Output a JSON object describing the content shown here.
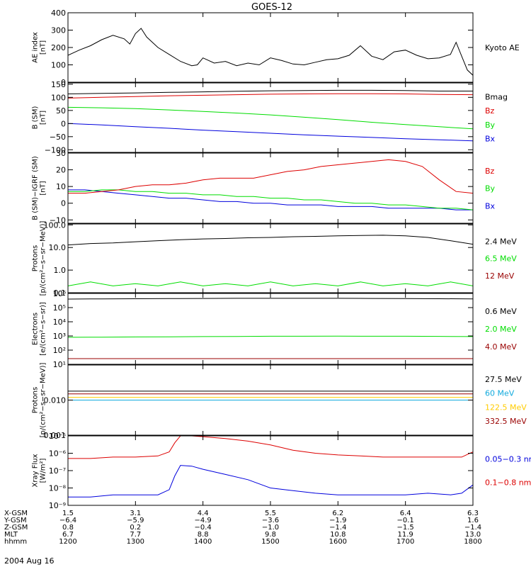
{
  "title": "GOES-12",
  "date_label": "2004 Aug 16",
  "colors": {
    "black": "#000000",
    "red": "#dd0000",
    "darkred": "#990000",
    "green": "#00dd00",
    "blue": "#0000dd",
    "yellow": "#ffcc00",
    "cyan": "#11aadd"
  },
  "chart_data": [
    {
      "type": "line",
      "panel": "ae",
      "ylabel": [
        "AE index",
        "[nT]"
      ],
      "yscale": "linear",
      "ylim": [
        0,
        400
      ],
      "ticks": [
        0,
        100,
        200,
        300,
        400
      ],
      "tick_labels": [
        "0",
        "100",
        "200",
        "300",
        "400"
      ],
      "x": [
        1200,
        1210,
        1220,
        1230,
        1240,
        1250,
        1255,
        1300,
        1305,
        1310,
        1320,
        1330,
        1340,
        1350,
        1355,
        1400,
        1410,
        1420,
        1430,
        1440,
        1450,
        1500,
        1510,
        1520,
        1530,
        1540,
        1550,
        1600,
        1610,
        1620,
        1630,
        1640,
        1650,
        1700,
        1710,
        1720,
        1730,
        1740,
        1745,
        1750,
        1755,
        1800
      ],
      "series": [
        {
          "name": "Kyoto AE",
          "color_key": "black",
          "values": [
            155,
            185,
            210,
            245,
            270,
            250,
            220,
            280,
            310,
            260,
            200,
            160,
            120,
            95,
            100,
            140,
            110,
            120,
            95,
            110,
            100,
            140,
            125,
            105,
            100,
            115,
            130,
            135,
            155,
            210,
            150,
            130,
            175,
            185,
            155,
            135,
            140,
            160,
            230,
            150,
            70,
            40
          ]
        }
      ]
    },
    {
      "type": "line",
      "panel": "b_sm",
      "ylabel": [
        "B (SM)",
        "[nT]"
      ],
      "yscale": "linear",
      "ylim": [
        -110,
        155
      ],
      "ticks": [
        -100,
        -50,
        0,
        50,
        100,
        150
      ],
      "tick_labels": [
        "−100",
        "−50",
        "0",
        "50",
        "100",
        "150"
      ],
      "x": [
        1200,
        1230,
        1300,
        1330,
        1400,
        1430,
        1500,
        1530,
        1600,
        1630,
        1700,
        1730,
        1800
      ],
      "series": [
        {
          "name": "Bx",
          "color_key": "blue",
          "values": [
            0,
            -5,
            -12,
            -18,
            -25,
            -31,
            -37,
            -43,
            -48,
            -53,
            -58,
            -62,
            -66
          ]
        },
        {
          "name": "By",
          "color_key": "green",
          "values": [
            62,
            60,
            57,
            52,
            46,
            40,
            33,
            24,
            15,
            5,
            -4,
            -12,
            -20
          ]
        },
        {
          "name": "Bz",
          "color_key": "red",
          "values": [
            97,
            100,
            103,
            106,
            108,
            110,
            112,
            113,
            114,
            114,
            113,
            111,
            110
          ]
        },
        {
          "name": "Bmag",
          "color_key": "black",
          "values": [
            113,
            115,
            117,
            119,
            121,
            123,
            125,
            126,
            127,
            127,
            126,
            124,
            124
          ]
        }
      ]
    },
    {
      "type": "line",
      "panel": "b_igrf",
      "ylabel": [
        "B (SM)−IGRF (SM)",
        "[nT]"
      ],
      "yscale": "linear",
      "ylim": [
        -12,
        30
      ],
      "ticks": [
        -10,
        0,
        10,
        20,
        30
      ],
      "tick_labels": [
        "−10",
        "0",
        "10",
        "20",
        "30"
      ],
      "x": [
        1200,
        1215,
        1230,
        1245,
        1300,
        1315,
        1330,
        1345,
        1400,
        1415,
        1430,
        1445,
        1500,
        1515,
        1530,
        1545,
        1600,
        1615,
        1630,
        1645,
        1700,
        1715,
        1730,
        1745,
        1800
      ],
      "series": [
        {
          "name": "Bx",
          "color_key": "blue",
          "values": [
            8,
            8,
            7,
            6,
            5,
            4,
            3,
            3,
            2,
            1,
            1,
            0,
            0,
            -1,
            -1,
            -1,
            -2,
            -2,
            -2,
            -3,
            -3,
            -3,
            -3,
            -4,
            -4
          ]
        },
        {
          "name": "By",
          "color_key": "green",
          "values": [
            7,
            7,
            8,
            8,
            7,
            7,
            6,
            6,
            5,
            5,
            4,
            4,
            3,
            3,
            2,
            2,
            1,
            0,
            0,
            -1,
            -1,
            -2,
            -3,
            -3,
            -4
          ]
        },
        {
          "name": "Bz",
          "color_key": "red",
          "values": [
            6,
            6,
            7,
            8,
            10,
            11,
            11,
            12,
            14,
            15,
            15,
            15,
            17,
            19,
            20,
            22,
            23,
            24,
            25,
            26,
            25,
            22,
            14,
            7,
            6
          ]
        }
      ]
    },
    {
      "type": "line",
      "panel": "protons_low",
      "ylabel": [
        "Protons",
        "[p/(cm²−s−sr−MeV)]"
      ],
      "yscale": "log",
      "ylim": [
        0.1,
        110
      ],
      "ticks": [
        0.1,
        1,
        10,
        100
      ],
      "tick_labels": [
        "0.1",
        "1.0",
        "10.0",
        "100.0"
      ],
      "x": [
        1200,
        1220,
        1240,
        1300,
        1320,
        1340,
        1400,
        1420,
        1440,
        1500,
        1520,
        1540,
        1600,
        1620,
        1640,
        1700,
        1720,
        1740,
        1800
      ],
      "series": [
        {
          "name": "12 MeV",
          "color_key": "darkred",
          "values": [
            0.1,
            0.1,
            0.1,
            0.1,
            0.1,
            0.1,
            0.1,
            0.1,
            0.1,
            0.1,
            0.1,
            0.1,
            0.1,
            0.1,
            0.1,
            0.1,
            0.1,
            0.1,
            0.1
          ]
        },
        {
          "name": "6.5 MeV",
          "color_key": "green",
          "values": [
            0.2,
            0.3,
            0.2,
            0.25,
            0.2,
            0.3,
            0.2,
            0.25,
            0.2,
            0.3,
            0.2,
            0.25,
            0.2,
            0.3,
            0.2,
            0.25,
            0.2,
            0.3,
            0.2
          ]
        },
        {
          "name": "2.4 MeV",
          "color_key": "black",
          "values": [
            13,
            15,
            16,
            18,
            20,
            22,
            24,
            25,
            27,
            28,
            30,
            31,
            33,
            34,
            35,
            33,
            28,
            20,
            14
          ]
        }
      ]
    },
    {
      "type": "line",
      "panel": "electrons",
      "ylabel": [
        "Electrons",
        "[e/(cm²−s−sr)]"
      ],
      "yscale": "log",
      "ylim": [
        10,
        1000000
      ],
      "ticks": [
        10,
        100,
        1000,
        10000,
        100000,
        1000000
      ],
      "tick_labels": [
        "10¹",
        "10²",
        "10³",
        "10⁴",
        "10⁵",
        "10⁶"
      ],
      "x": [
        1200,
        1230,
        1300,
        1330,
        1400,
        1430,
        1500,
        1530,
        1600,
        1630,
        1700,
        1730,
        1800
      ],
      "series": [
        {
          "name": "4.0 MeV",
          "color_key": "darkred",
          "values": [
            25,
            25,
            25,
            25,
            25,
            25,
            25,
            25,
            25,
            25,
            25,
            25,
            25
          ]
        },
        {
          "name": "2.0 MeV",
          "color_key": "green",
          "values": [
            800,
            820,
            850,
            870,
            900,
            920,
            950,
            960,
            970,
            960,
            950,
            930,
            900
          ]
        },
        {
          "name": "0.6 MeV",
          "color_key": "black",
          "values": [
            400000,
            410000,
            420000,
            430000,
            440000,
            450000,
            450000,
            450000,
            450000,
            440000,
            430000,
            420000,
            410000
          ]
        }
      ]
    },
    {
      "type": "line",
      "panel": "protons_high",
      "ylabel": [
        "Protons",
        "[p/(cm²−s−sr−MeV)]"
      ],
      "yscale": "log",
      "ylim": [
        0.001,
        0.1
      ],
      "ticks": [
        0.001,
        0.01
      ],
      "tick_labels": [
        "0.001",
        "0.010"
      ],
      "x": [
        1200,
        1230,
        1300,
        1330,
        1400,
        1430,
        1500,
        1530,
        1600,
        1630,
        1700,
        1730,
        1800
      ],
      "series": [
        {
          "name": "332.5 MeV",
          "color_key": "darkred",
          "values": [
            0.015,
            0.015,
            0.015,
            0.015,
            0.015,
            0.015,
            0.015,
            0.015,
            0.015,
            0.015,
            0.015,
            0.015,
            0.015
          ]
        },
        {
          "name": "122.5 MeV",
          "color_key": "yellow",
          "values": [
            0.012,
            0.012,
            0.012,
            0.012,
            0.012,
            0.012,
            0.012,
            0.012,
            0.012,
            0.012,
            0.012,
            0.012,
            0.012
          ]
        },
        {
          "name": "60 MeV",
          "color_key": "cyan",
          "values": [
            0.01,
            0.01,
            0.01,
            0.01,
            0.01,
            0.01,
            0.01,
            0.01,
            0.01,
            0.01,
            0.01,
            0.01,
            0.01
          ]
        },
        {
          "name": "27.5 MeV",
          "color_key": "black",
          "values": [
            0.018,
            0.018,
            0.018,
            0.018,
            0.018,
            0.018,
            0.018,
            0.018,
            0.018,
            0.018,
            0.018,
            0.018,
            0.018
          ]
        }
      ]
    },
    {
      "type": "line",
      "panel": "xray",
      "ylabel": [
        "Xray Flux",
        "[W/m²]"
      ],
      "yscale": "log",
      "ylim": [
        1e-09,
        1e-05
      ],
      "ticks": [
        1e-09,
        1e-08,
        1e-07,
        1e-06,
        1e-05
      ],
      "tick_labels": [
        "10⁻⁹",
        "10⁻⁸",
        "10⁻⁷",
        "10⁻⁶",
        "10⁻⁵"
      ],
      "x": [
        1200,
        1220,
        1240,
        1300,
        1320,
        1330,
        1335,
        1340,
        1350,
        1400,
        1420,
        1440,
        1500,
        1520,
        1540,
        1600,
        1620,
        1640,
        1700,
        1720,
        1740,
        1750,
        1800
      ],
      "series": [
        {
          "name": "0.1−0.8 nm",
          "color_key": "red",
          "values": [
            5e-07,
            5e-07,
            6e-07,
            6e-07,
            7e-07,
            1.2e-06,
            4e-06,
            1e-05,
            1e-05,
            9e-06,
            7e-06,
            5e-06,
            3e-06,
            1.5e-06,
            1e-06,
            8e-07,
            7e-07,
            6e-07,
            6e-07,
            6e-07,
            6e-07,
            6e-07,
            1.2e-06
          ]
        },
        {
          "name": "0.05−0.3 nm",
          "color_key": "blue",
          "values": [
            3e-09,
            3e-09,
            4e-09,
            4e-09,
            4e-09,
            8e-09,
            5e-08,
            2e-07,
            1.8e-07,
            1.2e-07,
            6e-08,
            3e-08,
            1e-08,
            7e-09,
            5e-09,
            4e-09,
            4e-09,
            4e-09,
            4e-09,
            5e-09,
            4e-09,
            5e-09,
            1.5e-08
          ]
        }
      ]
    }
  ],
  "x_axis": {
    "ticks": [
      1200,
      1300,
      1400,
      1500,
      1600,
      1700,
      1800
    ],
    "rows": [
      {
        "name": "X-GSM",
        "values": [
          "1.5",
          "3.1",
          "4.4",
          "5.5",
          "6.2",
          "6.4",
          "6.3"
        ]
      },
      {
        "name": "Y-GSM",
        "values": [
          "−6.4",
          "−5.9",
          "−4.9",
          "−3.6",
          "−1.9",
          "−0.1",
          "1.6"
        ]
      },
      {
        "name": "Z-GSM",
        "values": [
          "0.8",
          "0.2",
          "−0.4",
          "−1.0",
          "−1.4",
          "−1.5",
          "−1.4"
        ]
      },
      {
        "name": "MLT",
        "values": [
          "6.7",
          "7.7",
          "8.8",
          "9.8",
          "10.8",
          "11.9",
          "13.0"
        ]
      },
      {
        "name": "hhmm",
        "values": [
          "1200",
          "1300",
          "1400",
          "1500",
          "1600",
          "1700",
          "1800"
        ]
      }
    ]
  }
}
